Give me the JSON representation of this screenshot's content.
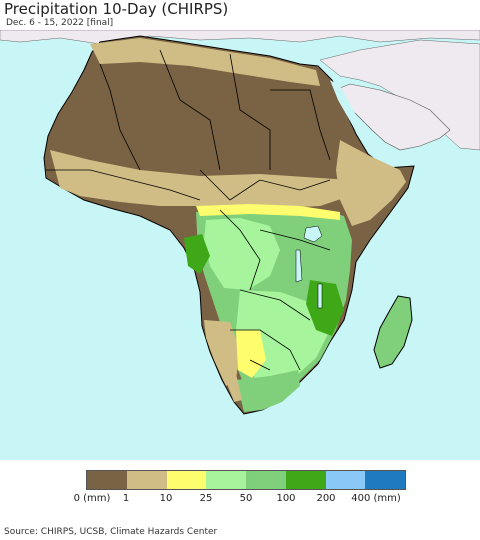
{
  "title": "Precipitation 10-Day (CHIRPS)",
  "subtitle": "Dec. 6 - 15, 2022 [final]",
  "legend": {
    "colors": [
      "#7a6244",
      "#d0bd86",
      "#fdfd6e",
      "#a6f59c",
      "#7fcf7b",
      "#3ea818",
      "#8ac9f7",
      "#1f7abf"
    ],
    "ticks": [
      "0 (mm)",
      "1",
      "10",
      "25",
      "50",
      "100",
      "200",
      "400 (mm)"
    ]
  },
  "map_colors": {
    "ocean": "#c8f5f5",
    "non_africa_land": "#efeaf0",
    "borders": "#000000"
  },
  "source": "Source: CHIRPS, UCSB, Climate Hazards Center"
}
